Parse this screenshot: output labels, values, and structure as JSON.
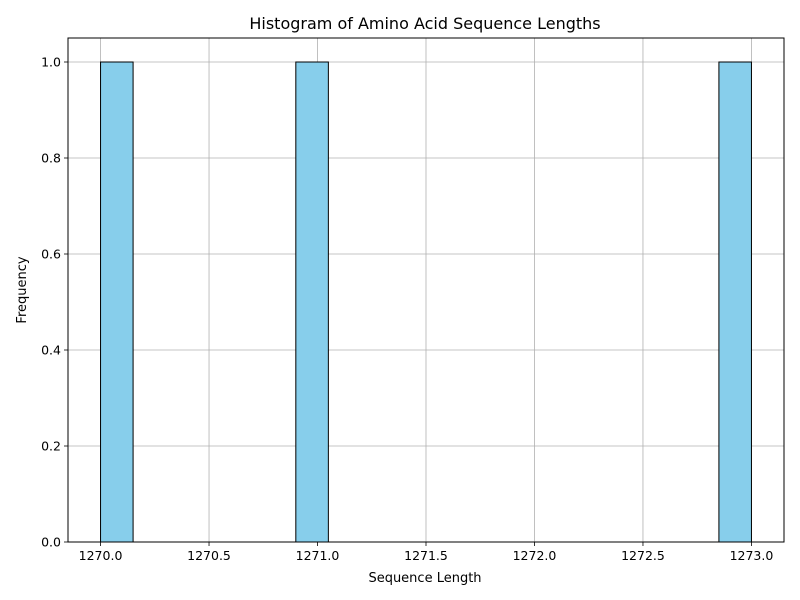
{
  "chart_data": {
    "type": "bar",
    "title": "Histogram of Amino Acid Sequence Lengths",
    "xlabel": "Sequence Length",
    "ylabel": "Frequency",
    "xlim": [
      1269.85,
      1273.15
    ],
    "ylim": [
      0,
      1.05
    ],
    "bins": [
      {
        "start": 1270.0,
        "end": 1270.15,
        "count": 1
      },
      {
        "start": 1270.9,
        "end": 1271.05,
        "count": 1
      },
      {
        "start": 1272.85,
        "end": 1273.0,
        "count": 1
      }
    ],
    "x_ticks": [
      1270.0,
      1270.5,
      1271.0,
      1271.5,
      1272.0,
      1272.5,
      1273.0
    ],
    "x_tick_labels": [
      "1270.0",
      "1270.5",
      "1271.0",
      "1271.5",
      "1272.0",
      "1272.5",
      "1273.0"
    ],
    "y_ticks": [
      0.0,
      0.2,
      0.4,
      0.6,
      0.8,
      1.0
    ],
    "y_tick_labels": [
      "0.0",
      "0.2",
      "0.4",
      "0.6",
      "0.8",
      "1.0"
    ],
    "grid": true,
    "colors": {
      "bar_fill": "#87ceeb",
      "bar_edge": "#000000",
      "grid": "#b0b0b0",
      "axes": "#000000"
    }
  }
}
